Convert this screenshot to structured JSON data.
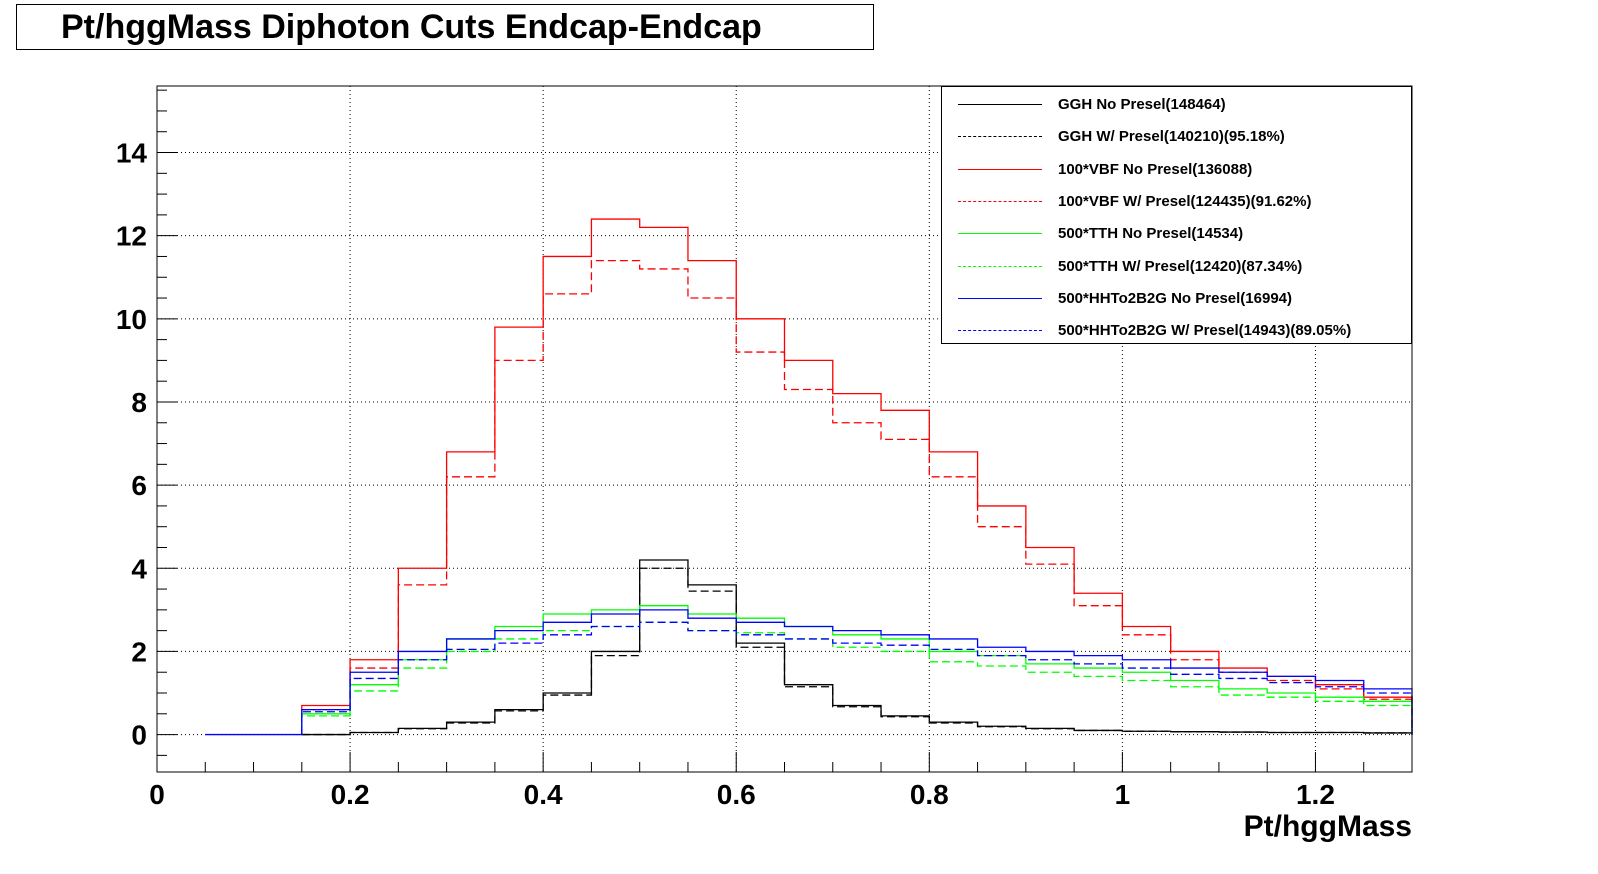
{
  "chart_data": {
    "type": "line",
    "title": "Pt/hggMass Diphoton Cuts Endcap-Endcap",
    "xlabel": "Pt/hggMass",
    "ylabel": "",
    "xlim": [
      0,
      1.3
    ],
    "ylim": [
      -0.9,
      15.6
    ],
    "x_ticks": [
      "0",
      "0.2",
      "0.4",
      "0.6",
      "0.8",
      "1",
      "1.2"
    ],
    "y_ticks": [
      "0",
      "2",
      "4",
      "6",
      "8",
      "10",
      "12",
      "14"
    ],
    "grid": true,
    "legend_position": "top-right",
    "x": [
      0.15,
      0.2,
      0.25,
      0.3,
      0.35,
      0.4,
      0.45,
      0.5,
      0.55,
      0.6,
      0.65,
      0.7,
      0.75,
      0.8,
      0.85,
      0.9,
      0.95,
      1.0,
      1.05,
      1.1,
      1.15,
      1.2,
      1.25,
      1.3
    ],
    "series": [
      {
        "name": "GGH No Presel(148464)",
        "color": "#000000",
        "style": "solid",
        "values": [
          0.0,
          0.05,
          0.15,
          0.3,
          0.6,
          1.0,
          2.0,
          4.2,
          3.6,
          2.2,
          1.2,
          0.7,
          0.45,
          0.3,
          0.2,
          0.15,
          0.1,
          0.08,
          0.07,
          0.06,
          0.05,
          0.05,
          0.04,
          0.04
        ]
      },
      {
        "name": "GGH W/ Presel(140210)(95.18%)",
        "color": "#000000",
        "style": "dashed",
        "values": [
          0.0,
          0.05,
          0.14,
          0.28,
          0.57,
          0.95,
          1.9,
          4.0,
          3.45,
          2.1,
          1.15,
          0.67,
          0.43,
          0.28,
          0.19,
          0.14,
          0.1,
          0.08,
          0.07,
          0.06,
          0.05,
          0.05,
          0.04,
          0.04
        ]
      },
      {
        "name": "100*VBF No Presel(136088)",
        "color": "#ff0000",
        "style": "solid",
        "values": [
          0.7,
          1.8,
          4.0,
          6.8,
          9.8,
          11.5,
          12.4,
          12.2,
          11.4,
          10.0,
          9.0,
          8.2,
          7.8,
          6.8,
          5.5,
          4.5,
          3.4,
          2.6,
          2.0,
          1.6,
          1.4,
          1.2,
          0.9,
          0.8
        ]
      },
      {
        "name": "100*VBF W/ Presel(124435)(91.62%)",
        "color": "#ff0000",
        "style": "dashed",
        "values": [
          0.6,
          1.6,
          3.6,
          6.2,
          9.0,
          10.6,
          11.4,
          11.2,
          10.5,
          9.2,
          8.3,
          7.5,
          7.1,
          6.2,
          5.0,
          4.1,
          3.1,
          2.4,
          1.8,
          1.5,
          1.3,
          1.1,
          0.85,
          0.75
        ]
      },
      {
        "name": "500*TTH No Presel(14534)",
        "color": "#00ff00",
        "style": "solid",
        "values": [
          0.5,
          1.2,
          1.8,
          2.3,
          2.6,
          2.9,
          3.0,
          3.1,
          2.9,
          2.8,
          2.6,
          2.4,
          2.3,
          2.0,
          1.9,
          1.7,
          1.6,
          1.5,
          1.3,
          1.1,
          1.0,
          0.9,
          0.8,
          0.6
        ]
      },
      {
        "name": "500*TTH W/ Presel(12420)(87.34%)",
        "color": "#00ff00",
        "style": "dashed",
        "values": [
          0.45,
          1.05,
          1.6,
          2.0,
          2.3,
          2.5,
          2.6,
          2.7,
          2.5,
          2.45,
          2.3,
          2.1,
          2.0,
          1.75,
          1.65,
          1.5,
          1.4,
          1.3,
          1.15,
          0.95,
          0.9,
          0.8,
          0.7,
          0.5
        ]
      },
      {
        "name": "500*HHTo2B2G No Presel(16994)",
        "color": "#0000ff",
        "style": "solid",
        "values": [
          0.6,
          1.5,
          2.0,
          2.3,
          2.5,
          2.7,
          2.9,
          3.0,
          2.8,
          2.7,
          2.6,
          2.5,
          2.4,
          2.3,
          2.1,
          2.0,
          1.9,
          1.8,
          1.6,
          1.5,
          1.4,
          1.3,
          1.1,
          0.9
        ]
      },
      {
        "name": "500*HHTo2B2G W/ Presel(14943)(89.05%)",
        "color": "#0000ff",
        "style": "dashed",
        "values": [
          0.55,
          1.35,
          1.8,
          2.05,
          2.2,
          2.4,
          2.6,
          2.7,
          2.5,
          2.4,
          2.3,
          2.2,
          2.15,
          2.05,
          1.9,
          1.8,
          1.7,
          1.6,
          1.45,
          1.35,
          1.25,
          1.15,
          1.0,
          0.8
        ]
      }
    ]
  }
}
